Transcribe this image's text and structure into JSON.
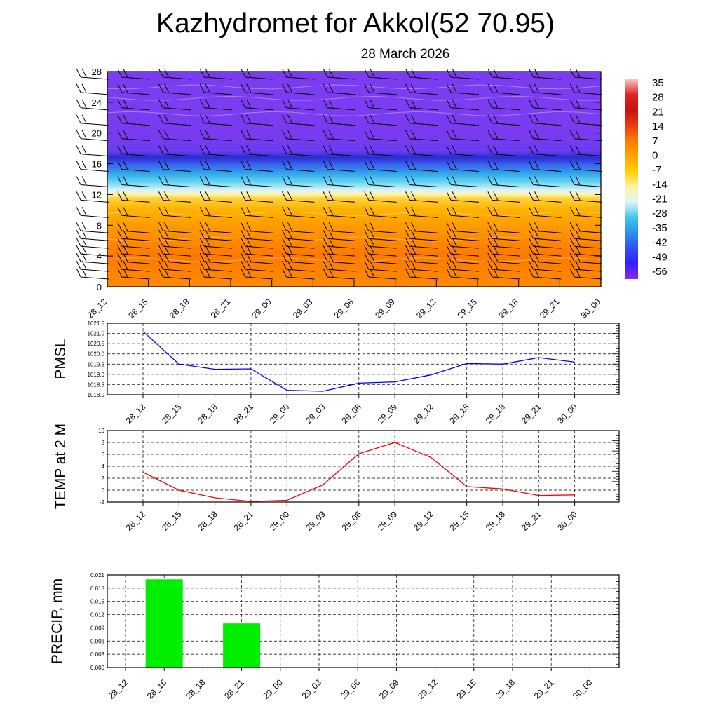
{
  "title": "Kazhydromet for Akkol(52 70.95)",
  "date": "28 March 2026",
  "time_labels": [
    "28_12",
    "28_15",
    "28_18",
    "28_21",
    "29_00",
    "29_03",
    "29_06",
    "29_09",
    "29_12",
    "29_15",
    "29_18",
    "29_21",
    "30_00"
  ],
  "chart_data": [
    {
      "type": "heatmap",
      "name": "temperature-cross-section",
      "x": [
        "28_12",
        "28_15",
        "28_18",
        "28_21",
        "29_00",
        "29_03",
        "29_06",
        "29_09",
        "29_12",
        "29_15",
        "29_18",
        "29_21",
        "30_00"
      ],
      "ylim": [
        0,
        28
      ],
      "yticks": [
        0,
        4,
        8,
        12,
        16,
        20,
        24,
        28
      ],
      "colorbar": {
        "ticks": [
          "35",
          "28",
          "21",
          "14",
          "7",
          "0",
          "-7",
          "-14",
          "-21",
          "-28",
          "-35",
          "-42",
          "-49",
          "-56"
        ],
        "colors": [
          "#f7c6c6",
          "#e22222",
          "#c81010",
          "#e83a10",
          "#ff7a00",
          "#ffa500",
          "#ffd000",
          "#fff5a0",
          "#e0f4f8",
          "#3ec6f0",
          "#2a90e8",
          "#3050f0",
          "#3020ff",
          "#8a2be2"
        ]
      },
      "layers": [
        {
          "from": 0,
          "to": 4,
          "value": 5
        },
        {
          "from": 4,
          "to": 12,
          "value": 2
        },
        {
          "from": 12,
          "to": 19,
          "value": -25
        },
        {
          "from": 19,
          "to": 28,
          "value": -56
        }
      ],
      "wind_barb_levels": [
        1,
        2,
        3,
        4,
        5,
        6,
        7,
        9,
        11,
        13,
        15,
        17,
        19,
        21,
        23,
        25,
        27
      ]
    },
    {
      "type": "line",
      "name": "pmsl",
      "ylabel": "PMSL",
      "ylim": [
        1018.0,
        1021.5
      ],
      "yticks": [
        "1018.0",
        "1018.5",
        "1019.0",
        "1019.5",
        "1020.0",
        "1020.5",
        "1021.0",
        "1021.5"
      ],
      "x": [
        "28_12",
        "28_15",
        "28_18",
        "28_21",
        "29_00",
        "29_03",
        "29_06",
        "29_09",
        "29_12",
        "29_15",
        "29_18",
        "29_21",
        "30_00"
      ],
      "values": [
        1021.1,
        1019.5,
        1019.25,
        1019.27,
        1018.22,
        1018.17,
        1018.57,
        1018.63,
        1018.97,
        1019.53,
        1019.5,
        1019.82,
        1019.6
      ],
      "color": "#0000ff"
    },
    {
      "type": "line",
      "name": "temp-2m",
      "ylabel": "TEMP at 2 M",
      "ylim": [
        -2,
        10
      ],
      "yticks": [
        "-2",
        "0",
        "2",
        "4",
        "6",
        "8",
        "10"
      ],
      "x": [
        "28_12",
        "28_15",
        "28_18",
        "28_21",
        "29_00",
        "29_03",
        "29_06",
        "29_09",
        "29_12",
        "29_15",
        "29_18",
        "29_21",
        "30_00"
      ],
      "values": [
        3.0,
        0.0,
        -1.3,
        -1.9,
        -1.7,
        0.9,
        6.1,
        8.0,
        5.5,
        0.6,
        0.2,
        -0.9,
        -0.8
      ],
      "color": "#ff0000"
    },
    {
      "type": "bar",
      "name": "precip",
      "ylabel": "PRECIP, mm",
      "ylim": [
        0,
        0.021
      ],
      "yticks": [
        "0.000",
        "0.003",
        "0.006",
        "0.009",
        "0.012",
        "0.015",
        "0.018",
        "0.021"
      ],
      "categories": [
        "28_12",
        "28_15",
        "28_18",
        "28_21",
        "29_00",
        "29_03",
        "29_06",
        "29_09",
        "29_12",
        "29_15",
        "29_18",
        "29_21",
        "30_00"
      ],
      "values": [
        0,
        0.02,
        0,
        0.01,
        0,
        0,
        0,
        0,
        0,
        0,
        0,
        0,
        0
      ],
      "color": "#00ee00"
    }
  ]
}
